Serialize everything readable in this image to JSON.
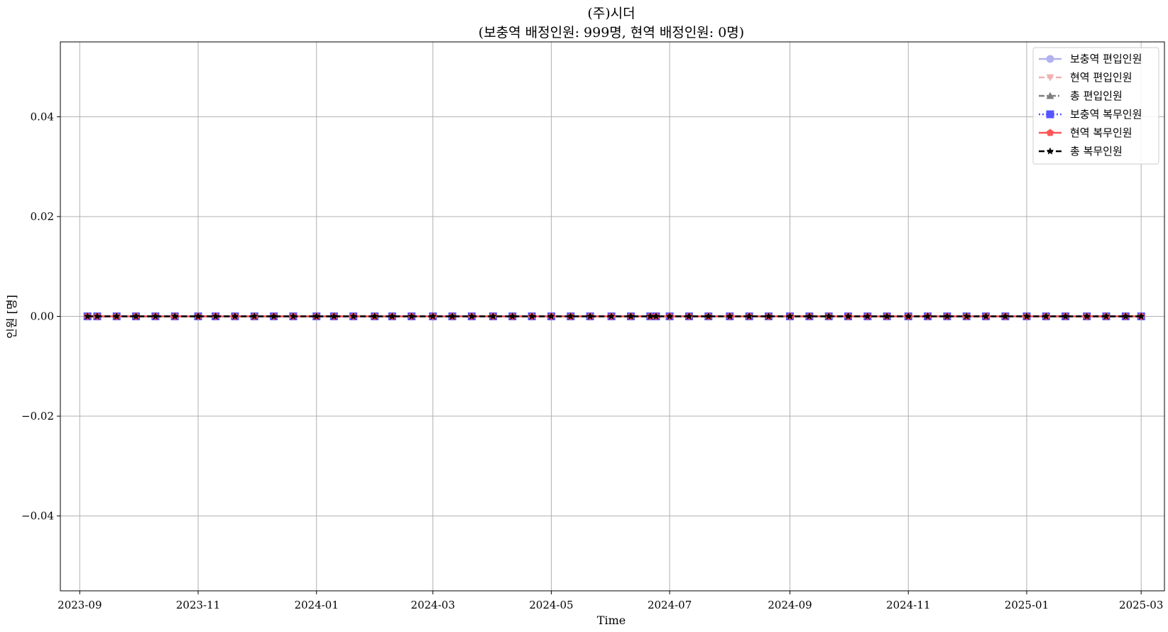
{
  "chart_data": {
    "type": "line",
    "title": "(주)시더",
    "subtitle": "(보충역 배정인원: 999명, 현역 배정인원: 0명)",
    "xlabel": "Time",
    "ylabel": "인원 [명]",
    "xlim": [
      "2023-08-22",
      "2025-03-13"
    ],
    "ylim": [
      -0.055,
      0.055
    ],
    "x_ticks": [
      "2023-09-01",
      "2023-11-01",
      "2024-01-01",
      "2024-03-01",
      "2024-05-01",
      "2024-07-01",
      "2024-09-01",
      "2024-11-01",
      "2025-01-01",
      "2025-03-01"
    ],
    "x_tick_labels": [
      "2023-09",
      "2023-11",
      "2024-01",
      "2024-03",
      "2024-05",
      "2024-07",
      "2024-09",
      "2024-11",
      "2025-01",
      "2025-03"
    ],
    "y_ticks": [
      0.04,
      0.02,
      0.0,
      -0.02,
      -0.04
    ],
    "y_tick_labels": [
      "0.04",
      "0.02",
      "0.00",
      "−0.02",
      "−0.04"
    ],
    "grid": true,
    "legend_position": "top-right",
    "x": [
      "2023-09-05",
      "2023-09-10",
      "2023-09-20",
      "2023-09-30",
      "2023-10-10",
      "2023-10-20",
      "2023-11-01",
      "2023-11-10",
      "2023-11-20",
      "2023-11-30",
      "2023-12-10",
      "2023-12-20",
      "2024-01-01",
      "2024-01-10",
      "2024-01-20",
      "2024-01-31",
      "2024-02-09",
      "2024-02-19",
      "2024-03-01",
      "2024-03-11",
      "2024-03-21",
      "2024-04-01",
      "2024-04-11",
      "2024-04-21",
      "2024-05-01",
      "2024-05-11",
      "2024-05-21",
      "2024-06-01",
      "2024-06-11",
      "2024-06-21",
      "2024-06-24",
      "2024-07-01",
      "2024-07-11",
      "2024-07-21",
      "2024-08-01",
      "2024-08-11",
      "2024-08-21",
      "2024-09-01",
      "2024-09-11",
      "2024-09-21",
      "2024-10-01",
      "2024-10-11",
      "2024-10-21",
      "2024-11-01",
      "2024-11-11",
      "2024-11-21",
      "2024-12-01",
      "2024-12-11",
      "2024-12-21",
      "2025-01-01",
      "2025-01-11",
      "2025-01-21",
      "2025-02-01",
      "2025-02-11",
      "2025-02-21",
      "2025-03-01"
    ],
    "series": [
      {
        "name": "보충역 편입인원",
        "value": 0,
        "color": "#b2b2f0",
        "linestyle": "solid",
        "marker": "circle"
      },
      {
        "name": "현역 편입인원",
        "value": 0,
        "color": "#f0b2b2",
        "linestyle": "dashed",
        "marker": "triangle-down"
      },
      {
        "name": "총 편입인원",
        "value": 0,
        "color": "#7f7f7f",
        "linestyle": "dashdot",
        "marker": "triangle-up"
      },
      {
        "name": "보충역 복무인원",
        "value": 0,
        "color": "#5555ff",
        "linestyle": "dotted",
        "marker": "square"
      },
      {
        "name": "현역 복무인원",
        "value": 0,
        "color": "#ff5555",
        "linestyle": "solid",
        "marker": "pentagon"
      },
      {
        "name": "총 복무인원",
        "value": 0,
        "color": "#000000",
        "linestyle": "dashed",
        "marker": "star"
      }
    ]
  }
}
